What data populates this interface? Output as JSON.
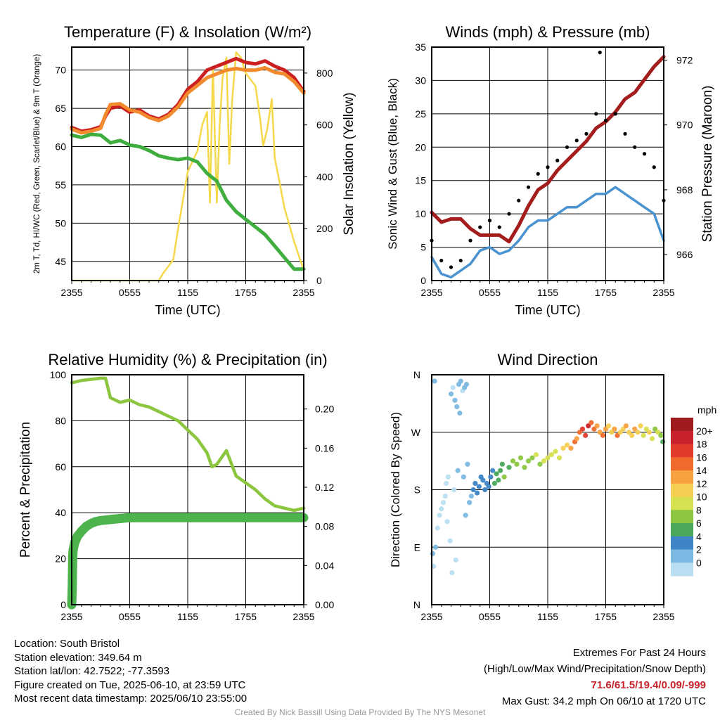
{
  "chart_data": [
    {
      "id": "temp",
      "type": "line",
      "title": "Temperature (F) & Insolation (W/m²)",
      "xlabel": "Time (UTC)",
      "ylabel": "2m T, Td, HI/WC (Red, Green, Scarlet/Blue) & 9m T (Orange)",
      "y2label": "Solar Insolation (Yellow)",
      "x_tick_labels": [
        "2355",
        "0555",
        "1155",
        "1755",
        "2355"
      ],
      "x_range_hours": [
        0,
        24
      ],
      "ylim": [
        42.5,
        73
      ],
      "y_ticks": [
        45,
        50,
        55,
        60,
        65,
        70
      ],
      "y2lim": [
        0,
        900
      ],
      "y2_ticks": [
        0,
        200,
        400,
        600,
        800
      ],
      "grid": true,
      "series": [
        {
          "name": "Solar Insolation",
          "axis": "right",
          "color": "#f5d94a",
          "x": [
            0,
            9,
            9.5,
            10.5,
            11,
            12,
            13,
            13.5,
            14,
            14.3,
            14.6,
            15,
            15.3,
            15.6,
            16,
            16.3,
            16.6,
            17,
            17.5,
            18,
            19,
            19.5,
            19.8,
            20.2,
            20.7,
            21,
            21.5,
            22,
            23,
            24
          ],
          "values": [
            0,
            0,
            30,
            80,
            200,
            420,
            500,
            600,
            650,
            300,
            820,
            300,
            600,
            780,
            860,
            450,
            700,
            880,
            860,
            800,
            750,
            620,
            520,
            580,
            700,
            470,
            380,
            280,
            150,
            40
          ]
        },
        {
          "name": "2m Temperature",
          "axis": "left",
          "color": "#cc2020",
          "x": [
            0,
            1,
            2,
            3,
            3.5,
            4,
            5,
            6,
            7,
            8,
            9,
            10,
            11,
            12,
            13,
            14,
            15,
            16,
            17,
            18,
            19,
            20,
            21,
            22,
            23,
            24
          ],
          "values": [
            62.5,
            62,
            62.2,
            62.6,
            64,
            65,
            65.3,
            64.5,
            64.8,
            64,
            63.6,
            64.2,
            65.5,
            67.5,
            68.5,
            70,
            70.5,
            71,
            71.5,
            71,
            70.8,
            71.2,
            70.5,
            70,
            69,
            67.2
          ]
        },
        {
          "name": "9m Temperature",
          "axis": "left",
          "color": "#f28a2e",
          "x": [
            0,
            1,
            2,
            3,
            3.5,
            4,
            5,
            6,
            7,
            8,
            9,
            10,
            11,
            12,
            13,
            14,
            15,
            16,
            17,
            18,
            19,
            20,
            21,
            22,
            23,
            24
          ],
          "values": [
            62.3,
            61.8,
            62,
            62.4,
            64.2,
            65.5,
            65.6,
            64.8,
            64.5,
            63.8,
            63.4,
            64,
            65.2,
            67,
            68,
            69,
            69.5,
            70,
            70.2,
            70,
            70,
            70.3,
            69.7,
            69.5,
            68.5,
            67
          ]
        },
        {
          "name": "2m Dewpoint",
          "axis": "left",
          "color": "#3fae3f",
          "x": [
            0,
            1,
            2,
            3,
            4,
            5,
            6,
            7,
            8,
            9,
            10,
            11,
            12,
            13,
            14,
            15,
            16,
            17,
            18,
            19,
            20,
            21,
            22,
            23,
            24
          ],
          "values": [
            61.5,
            61.2,
            61.6,
            61.5,
            60.5,
            60.8,
            60.2,
            60,
            59.5,
            58.8,
            58.5,
            58.3,
            58.5,
            58,
            56.5,
            55.5,
            53,
            51.5,
            50.5,
            49.5,
            48.5,
            47,
            45.5,
            44,
            44
          ]
        }
      ]
    },
    {
      "id": "wind",
      "type": "scatter",
      "title": "Winds (mph) & Pressure (mb)",
      "xlabel": "Time (UTC)",
      "ylabel": "Sonic Wind & Gust (Blue, Black)",
      "y2label": "Station Pressure (Maroon)",
      "x_tick_labels": [
        "2355",
        "0555",
        "1155",
        "1755",
        "2355"
      ],
      "x_range_hours": [
        0,
        24
      ],
      "ylim": [
        0,
        35
      ],
      "y_ticks": [
        0,
        5,
        10,
        15,
        20,
        25,
        30,
        35
      ],
      "y2lim": [
        965.2,
        972.4
      ],
      "y2_ticks": [
        966,
        968,
        970,
        972
      ],
      "grid": true,
      "series": [
        {
          "name": "Sonic Wind",
          "axis": "left",
          "color": "#4a92d0",
          "x": [
            0,
            1,
            2,
            3,
            4,
            5,
            6,
            7,
            8,
            9,
            10,
            11,
            12,
            13,
            14,
            15,
            16,
            17,
            18,
            19,
            20,
            21,
            22,
            23,
            24
          ],
          "values": [
            3.5,
            1,
            0.5,
            1.5,
            2.5,
            4.5,
            5,
            4,
            4.5,
            6,
            8,
            9,
            9,
            10,
            11,
            11,
            12,
            13,
            13,
            14,
            13,
            12,
            11,
            10,
            6
          ]
        },
        {
          "name": "Gust",
          "axis": "left",
          "color": "#000000",
          "x": [
            0,
            1,
            2,
            3,
            4,
            5,
            6,
            7,
            8,
            9,
            10,
            11,
            12,
            13,
            14,
            15,
            16,
            17,
            18,
            19,
            20,
            21,
            22,
            23,
            24
          ],
          "values": [
            6,
            3,
            2,
            3,
            6,
            8,
            9,
            8,
            10,
            12,
            14,
            16,
            17,
            18,
            20,
            21,
            22,
            25,
            24,
            25,
            22,
            20,
            19,
            17,
            12
          ]
        },
        {
          "name": "Station Pressure",
          "axis": "right",
          "color": "#a41d1d",
          "x": [
            0,
            1,
            2,
            3,
            4,
            5,
            6,
            7,
            8,
            9,
            10,
            11,
            12,
            13,
            14,
            15,
            16,
            17,
            18,
            19,
            20,
            21,
            22,
            23,
            24
          ],
          "values": [
            967.3,
            967,
            967.1,
            967.1,
            966.8,
            966.6,
            966.6,
            966.6,
            966.4,
            966.9,
            967.5,
            968,
            968.2,
            968.6,
            968.9,
            969.2,
            969.5,
            969.9,
            970.1,
            970.4,
            970.8,
            971,
            971.4,
            971.8,
            972.1
          ]
        }
      ],
      "annotations": [
        {
          "x": 17.4,
          "y": 34.2,
          "text": ""
        }
      ]
    },
    {
      "id": "rh",
      "type": "line",
      "title": "Relative Humidity (%) & Precipitation (in)",
      "ylabel": "Percent & Precipitation",
      "x_tick_labels": [
        "2355",
        "0555",
        "1155",
        "1755",
        "2355"
      ],
      "x_range_hours": [
        0,
        24
      ],
      "ylim": [
        0,
        100
      ],
      "y_ticks": [
        0,
        20,
        40,
        60,
        80,
        100
      ],
      "y2lim": [
        0,
        0.235
      ],
      "y2_ticks": [
        "0.00",
        "0.04",
        "0.08",
        "0.12",
        "0.16",
        "0.20"
      ],
      "grid": true,
      "series": [
        {
          "name": "Relative Humidity",
          "axis": "left",
          "color": "#8cc63f",
          "x": [
            0,
            1,
            2,
            3,
            3.5,
            4,
            5,
            6,
            7,
            8,
            9,
            10,
            11,
            12,
            13,
            14,
            14.5,
            15,
            16,
            17,
            18,
            19,
            20,
            21,
            22,
            23,
            24
          ],
          "values": [
            96.5,
            97.5,
            98,
            98.5,
            98.5,
            90,
            88,
            89,
            87,
            86,
            84,
            82,
            80,
            76,
            72,
            66,
            60,
            61,
            67,
            56,
            53,
            50,
            46,
            43,
            42,
            41,
            42
          ]
        },
        {
          "name": "Precipitation",
          "axis": "right",
          "color": "#4db34d",
          "x": [
            0,
            0.05,
            0.1,
            0.15,
            0.3,
            0.6,
            1,
            1.5,
            2,
            2.5,
            3,
            4,
            5,
            6,
            8,
            12,
            16,
            20,
            24
          ],
          "values": [
            0,
            0.016,
            0.05,
            0.056,
            0.063,
            0.07,
            0.075,
            0.08,
            0.083,
            0.085,
            0.086,
            0.087,
            0.088,
            0.089,
            0.089,
            0.089,
            0.089,
            0.089,
            0.089
          ]
        }
      ]
    },
    {
      "id": "dir",
      "type": "scatter",
      "title": "Wind Direction",
      "ylabel": "Direction (Colored By Speed)",
      "x_tick_labels": [
        "2355",
        "0555",
        "1155",
        "1755",
        "2355"
      ],
      "x_range_hours": [
        0,
        24
      ],
      "y_tick_labels": [
        "N",
        "E",
        "S",
        "W",
        "N"
      ],
      "y_range_degrees": [
        0,
        360
      ],
      "colorbar_title": "mph",
      "colorbar_labels": [
        "20+",
        "18",
        "16",
        "14",
        "12",
        "10",
        "8",
        "6",
        "4",
        "2",
        "0"
      ],
      "colorbar_colors": [
        "#9e1a1c",
        "#c8232c",
        "#e33a2c",
        "#f06a2c",
        "#f9a040",
        "#f4cf52",
        "#d7e04e",
        "#8cc63f",
        "#4aa85a",
        "#3d85c6",
        "#7cb8e2",
        "#b9def2"
      ],
      "grid": true,
      "series": [
        {
          "name": "Direction",
          "x": [
            0.1,
            0.2,
            0.3,
            0.4,
            0.6,
            0.8,
            1.0,
            1.2,
            1.4,
            1.5,
            1.7,
            2.0,
            2.2,
            2.4,
            2.6,
            2.8,
            3.0,
            3.2,
            3.4,
            3.6,
            2.1,
            2.3,
            2.5,
            1.9,
            2.7,
            2.9,
            3.3,
            1.6,
            3.5,
            3.7,
            3.9,
            4.1,
            4.3,
            4.5,
            4.7,
            4.9,
            5.1,
            5.3,
            5.5,
            5.7,
            5.9,
            6.1,
            6.3,
            6.5,
            6.7,
            6.9,
            7.1,
            7.3,
            7.5,
            8.0,
            8.4,
            8.8,
            9.2,
            9.6,
            10.0,
            10.4,
            10.8,
            11.2,
            11.6,
            12.0,
            12.4,
            12.8,
            13.2,
            13.6,
            14.0,
            14.4,
            14.8,
            15.0,
            15.3,
            15.6,
            15.9,
            16.2,
            16.5,
            16.8,
            17.1,
            17.4,
            17.7,
            18.0,
            18.3,
            18.6,
            18.9,
            19.2,
            19.5,
            19.8,
            20.1,
            20.4,
            20.7,
            21.0,
            21.3,
            21.6,
            21.9,
            22.2,
            22.5,
            22.8,
            23.1,
            23.4,
            23.7,
            23.9
          ],
          "values": [
            80,
            60,
            350,
            90,
            120,
            140,
            150,
            160,
            170,
            190,
            200,
            330,
            340,
            320,
            310,
            345,
            350,
            335,
            340,
            345,
            50,
            180,
            70,
            100,
            210,
            300,
            200,
            130,
            140,
            220,
            160,
            170,
            180,
            190,
            175,
            185,
            200,
            195,
            180,
            190,
            185,
            200,
            210,
            190,
            205,
            195,
            210,
            220,
            200,
            215,
            225,
            220,
            230,
            215,
            225,
            230,
            235,
            220,
            225,
            230,
            235,
            240,
            230,
            245,
            250,
            245,
            255,
            260,
            270,
            275,
            265,
            280,
            285,
            275,
            280,
            270,
            265,
            275,
            280,
            270,
            275,
            265,
            270,
            275,
            280,
            270,
            265,
            275,
            270,
            280,
            265,
            275,
            270,
            260,
            275,
            270,
            265,
            255
          ],
          "speeds": [
            3,
            1,
            3,
            3,
            1,
            1,
            1,
            1,
            1,
            1,
            1,
            2,
            1,
            2,
            2,
            2,
            2,
            1,
            2,
            2,
            1,
            1,
            1,
            1,
            2,
            2,
            2,
            1,
            2,
            2,
            3,
            3,
            4,
            4,
            4,
            5,
            4,
            5,
            5,
            4,
            5,
            5,
            5,
            6,
            6,
            7,
            7,
            7,
            8,
            7,
            8,
            9,
            8,
            9,
            9,
            9,
            10,
            9,
            10,
            10,
            11,
            10,
            11,
            12,
            13,
            14,
            16,
            15,
            17,
            18,
            19,
            20,
            17,
            16,
            15,
            14,
            16,
            15,
            13,
            12,
            14,
            16,
            13,
            12,
            14,
            13,
            12,
            15,
            13,
            12,
            11,
            10,
            12,
            11,
            9,
            10,
            8,
            7
          ]
        }
      ]
    }
  ],
  "info": {
    "location": "Location: South Bristol",
    "elevation": "Station elevation: 349.64 m",
    "latlon": "Station lat/lon: 42.7522; -77.3593",
    "created": "Figure created on Tue, 2025-06-10, at 23:59 UTC",
    "recent": "Most recent data timestamp: 2025/06/10 23:55:00"
  },
  "extremes": {
    "heading": "Extremes For Past 24 Hours",
    "subheading": "(High/Low/Max Wind/Precipitation/Snow Depth)",
    "values": "71.6/61.5/19.4/0.09/-999",
    "max_gust": "Max Gust: 34.2 mph On 06/10 at 1720 UTC",
    "values_color": "#c8232c"
  },
  "credit": "Created By Nick Bassill Using Data Provided By The NYS Mesonet"
}
